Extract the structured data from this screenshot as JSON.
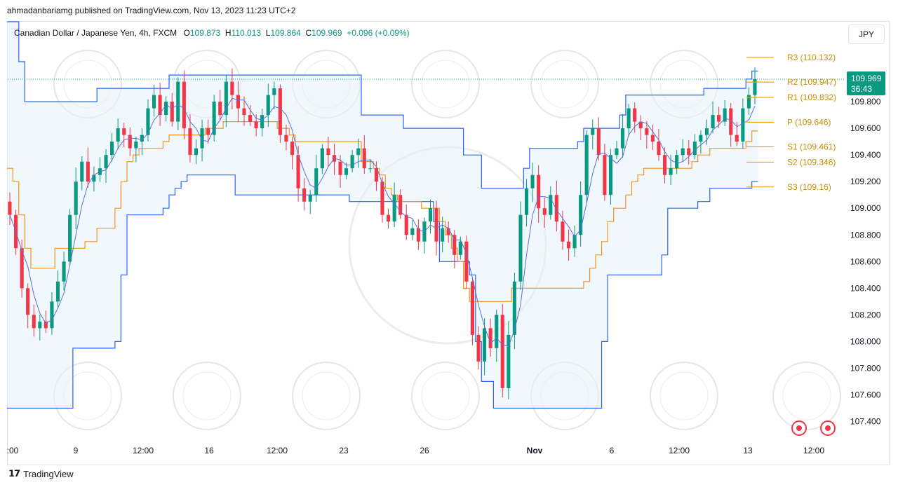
{
  "publish_line": "ahmadanbariamg published on TradingView.com, Nov 13, 2023 11:23 UTC+2",
  "legend": {
    "symbol": "Canadian Dollar / Japanese Yen, 4h, FXCM",
    "open_label": "O",
    "open": "109.873",
    "high_label": "H",
    "high": "110.013",
    "low_label": "L",
    "low": "109.864",
    "close_label": "C",
    "close": "109.969",
    "change": "+0.096 (+0.09%)"
  },
  "currency": "JPY",
  "brand": "TradingView",
  "price_badge": {
    "price": "109.969",
    "countdown": "36:43"
  },
  "icons": [
    "tradingview-logo-icon",
    "record-icon"
  ],
  "colors": {
    "up": "#089981",
    "down": "#f23645",
    "channel": "#2962ff",
    "basis": "#f7931a",
    "pivot": "#f0a400"
  },
  "chart_data": {
    "type": "candlestick",
    "ylim": [
      107.25,
      110.4
    ],
    "y_ticks": [
      "110.000",
      "109.800",
      "109.600",
      "109.400",
      "109.200",
      "109.000",
      "108.800",
      "108.600",
      "108.400",
      "108.200",
      "108.000",
      "107.800",
      "107.600",
      "107.400"
    ],
    "x_ticks": [
      ":00",
      "9",
      "12:00",
      "16",
      "12:00",
      "23",
      "26",
      "Nov",
      "6",
      "12:00",
      "13",
      "12:00"
    ],
    "pivots": [
      {
        "label": "R3",
        "value": "110.132"
      },
      {
        "label": "R2",
        "value": "109.947"
      },
      {
        "label": "R1",
        "value": "109.832"
      },
      {
        "label": "P",
        "value": "109.646"
      },
      {
        "label": "S1",
        "value": "109.461"
      },
      {
        "label": "S2",
        "value": "109.346"
      },
      {
        "label": "S3",
        "value": "109.16"
      }
    ],
    "last_price": 109.969,
    "closes": [
      108.95,
      108.7,
      108.4,
      108.2,
      108.1,
      108.15,
      108.1,
      108.3,
      108.45,
      108.6,
      108.95,
      109.2,
      109.35,
      109.2,
      109.25,
      109.3,
      109.4,
      109.5,
      109.6,
      109.55,
      109.45,
      109.5,
      109.55,
      109.75,
      109.85,
      109.7,
      109.8,
      109.65,
      109.95,
      109.6,
      109.4,
      109.45,
      109.6,
      109.55,
      109.8,
      109.7,
      109.95,
      109.85,
      109.75,
      109.7,
      109.65,
      109.6,
      109.7,
      109.85,
      109.9,
      109.55,
      109.5,
      109.4,
      109.15,
      109.05,
      109.1,
      109.3,
      109.45,
      109.4,
      109.35,
      109.25,
      109.3,
      109.4,
      109.45,
      109.3,
      109.3,
      109.2,
      108.95,
      108.9,
      109.1,
      108.95,
      108.8,
      108.85,
      108.75,
      108.9,
      109.0,
      108.75,
      108.85,
      108.8,
      108.65,
      108.75,
      108.45,
      108.05,
      107.85,
      108.1,
      107.95,
      108.2,
      107.65,
      108.05,
      108.45,
      108.95,
      109.15,
      109.25,
      109.0,
      108.95,
      109.1,
      108.9,
      108.75,
      108.7,
      108.8,
      109.1,
      109.55,
      109.6,
      109.4,
      109.1,
      109.4,
      109.45,
      109.6,
      109.75,
      109.65,
      109.6,
      109.55,
      109.5,
      109.4,
      109.25,
      109.3,
      109.4,
      109.45,
      109.4,
      109.5,
      109.55,
      109.6,
      109.7,
      109.65,
      109.75,
      109.55,
      109.5,
      109.75,
      109.85,
      109.969
    ],
    "upper_channel": [
      110.6,
      110.6,
      110.1,
      109.8,
      109.8,
      109.8,
      109.8,
      109.8,
      109.8,
      109.8,
      109.8,
      109.8,
      109.8,
      109.8,
      109.8,
      109.9,
      109.9,
      109.9,
      109.9,
      109.9,
      109.9,
      109.9,
      109.9,
      109.9,
      109.9,
      109.9,
      109.9,
      110.0,
      110.0,
      110.0,
      110.0,
      110.0,
      110.0,
      110.0,
      110.0,
      110.0,
      110.0,
      110.0,
      110.0,
      110.0,
      110.0,
      110.0,
      110.0,
      110.0,
      110.0,
      110.0,
      110.0,
      110.0,
      110.0,
      110.0,
      110.0,
      110.0,
      110.0,
      110.0,
      110.0,
      110.0,
      110.0,
      110.0,
      110.0,
      109.7,
      109.7,
      109.7,
      109.7,
      109.7,
      109.7,
      109.7,
      109.6,
      109.6,
      109.6,
      109.6,
      109.6,
      109.6,
      109.6,
      109.6,
      109.6,
      109.6,
      109.4,
      109.4,
      109.4,
      109.15,
      109.15,
      109.15,
      109.15,
      109.15,
      109.15,
      109.15,
      109.3,
      109.45,
      109.45,
      109.45,
      109.45,
      109.45,
      109.45,
      109.45,
      109.45,
      109.5,
      109.6,
      109.6,
      109.6,
      109.6,
      109.6,
      109.6,
      109.7,
      109.85,
      109.85,
      109.85,
      109.85,
      109.85,
      109.85,
      109.85,
      109.85,
      109.85,
      109.85,
      109.85,
      109.85,
      109.85,
      109.9,
      109.9,
      109.9,
      109.9,
      109.9,
      109.9,
      109.9,
      109.97,
      110.03
    ],
    "basis_line": [
      109.3,
      109.2,
      108.95,
      108.7,
      108.55,
      108.55,
      108.55,
      108.55,
      108.7,
      108.7,
      108.7,
      108.7,
      108.7,
      108.75,
      108.75,
      108.85,
      108.85,
      108.85,
      109.0,
      109.2,
      109.35,
      109.4,
      109.45,
      109.45,
      109.45,
      109.45,
      109.5,
      109.55,
      109.55,
      109.55,
      109.55,
      109.55,
      109.55,
      109.6,
      109.6,
      109.6,
      109.65,
      109.65,
      109.65,
      109.65,
      109.65,
      109.65,
      109.65,
      109.65,
      109.65,
      109.6,
      109.6,
      109.55,
      109.5,
      109.5,
      109.5,
      109.5,
      109.5,
      109.5,
      109.5,
      109.5,
      109.5,
      109.5,
      109.5,
      109.35,
      109.35,
      109.3,
      109.25,
      109.15,
      109.1,
      109.05,
      109.05,
      109.05,
      109.05,
      109.0,
      109.0,
      109.0,
      108.9,
      108.8,
      108.7,
      108.6,
      108.4,
      108.3,
      108.3,
      108.3,
      108.3,
      108.3,
      108.3,
      108.3,
      108.4,
      108.4,
      108.4,
      108.4,
      108.4,
      108.4,
      108.4,
      108.4,
      108.4,
      108.4,
      108.4,
      108.4,
      108.45,
      108.55,
      108.65,
      108.75,
      108.9,
      109.0,
      109.0,
      109.1,
      109.2,
      109.25,
      109.3,
      109.3,
      109.3,
      109.3,
      109.3,
      109.3,
      109.3,
      109.3,
      109.35,
      109.4,
      109.4,
      109.45,
      109.45,
      109.45,
      109.45,
      109.45,
      109.45,
      109.5,
      109.58
    ],
    "lower_channel": [
      107.5,
      107.5,
      107.5,
      107.5,
      107.5,
      107.5,
      107.5,
      107.5,
      107.5,
      107.5,
      107.5,
      107.95,
      107.95,
      107.95,
      107.95,
      107.95,
      107.95,
      107.95,
      108.0,
      108.5,
      108.95,
      108.95,
      108.95,
      108.95,
      108.95,
      108.95,
      109.0,
      109.1,
      109.15,
      109.2,
      109.25,
      109.25,
      109.25,
      109.25,
      109.25,
      109.25,
      109.25,
      109.25,
      109.1,
      109.1,
      109.1,
      109.1,
      109.1,
      109.1,
      109.1,
      109.1,
      109.1,
      109.1,
      109.1,
      109.1,
      109.1,
      109.1,
      109.1,
      109.1,
      109.1,
      109.1,
      109.1,
      109.05,
      109.05,
      109.05,
      109.05,
      109.05,
      109.05,
      109.05,
      109.05,
      109.05,
      109.05,
      109.05,
      109.05,
      109.05,
      109.05,
      108.9,
      108.6,
      108.6,
      108.6,
      108.6,
      108.6,
      108.5,
      108.0,
      107.7,
      107.7,
      107.5,
      107.5,
      107.5,
      107.5,
      107.5,
      107.5,
      107.5,
      107.5,
      107.5,
      107.5,
      107.5,
      107.5,
      107.5,
      107.5,
      107.5,
      107.5,
      107.5,
      107.5,
      108.0,
      108.5,
      108.5,
      108.5,
      108.5,
      108.5,
      108.5,
      108.5,
      108.5,
      108.5,
      108.65,
      109.0,
      109.0,
      109.0,
      109.0,
      109.0,
      109.05,
      109.05,
      109.15,
      109.15,
      109.15,
      109.15,
      109.15,
      109.15,
      109.15,
      109.2
    ]
  }
}
